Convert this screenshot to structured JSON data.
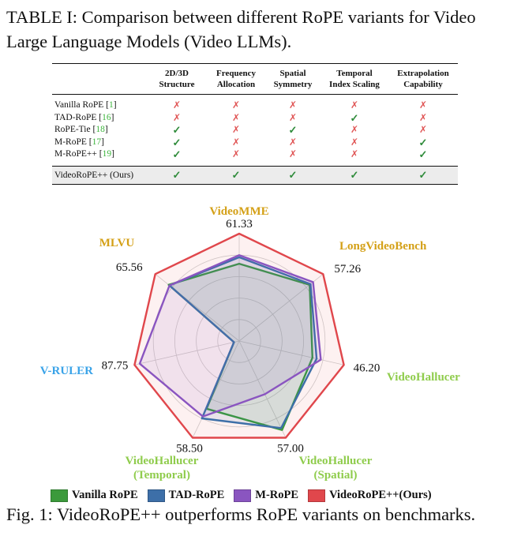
{
  "table": {
    "caption": "TABLE I: Comparison between different RoPE variants for Video Large Language Models (Video LLMs).",
    "headers": [
      [
        "2D/3D",
        "Structure"
      ],
      [
        "Frequency",
        "Allocation"
      ],
      [
        "Spatial",
        "Symmetry"
      ],
      [
        "Temporal",
        "Index Scaling"
      ],
      [
        "Extrapolation",
        "Capability"
      ]
    ],
    "rows": [
      {
        "name": "Vanilla RoPE ",
        "ref": "1",
        "cells": [
          "x",
          "x",
          "x",
          "x",
          "x"
        ]
      },
      {
        "name": "TAD-RoPE ",
        "ref": "16",
        "cells": [
          "x",
          "x",
          "x",
          "check",
          "x"
        ]
      },
      {
        "name": "RoPE-Tie ",
        "ref": "18",
        "cells": [
          "check",
          "x",
          "check",
          "x",
          "x"
        ]
      },
      {
        "name": "M-RoPE ",
        "ref": "17",
        "cells": [
          "check",
          "x",
          "x",
          "x",
          "check"
        ]
      },
      {
        "name": "M-RoPE++ ",
        "ref": "19",
        "cells": [
          "check",
          "x",
          "x",
          "x",
          "check"
        ]
      }
    ],
    "ours": {
      "name": "VideoRoPE++ (Ours)",
      "cells": [
        "check",
        "check",
        "check",
        "check",
        "check"
      ]
    },
    "symbols": {
      "x": "✗",
      "check": "✓"
    }
  },
  "chart_data": {
    "type": "radar",
    "axes": [
      {
        "name": "VideoMME",
        "max_label": "61.33",
        "color": "#d4a017"
      },
      {
        "name": "LongVideoBench",
        "max_label": "57.26",
        "color": "#d4a017"
      },
      {
        "name": "VideoHallucer",
        "max_label": "46.20",
        "color": "#8fcc4c"
      },
      {
        "name": "VideoHallucer\n(Spatial)",
        "max_label": "57.00",
        "color": "#8fcc4c"
      },
      {
        "name": "VideoHallucer\n(Temporal)",
        "max_label": "58.50",
        "color": "#8fcc4c"
      },
      {
        "name": "V-RULER",
        "max_label": "87.75",
        "color": "#3aa3e8"
      },
      {
        "name": "MLVU",
        "max_label": "65.56",
        "color": "#d4a017"
      }
    ],
    "series": [
      {
        "name": "Vanilla RoPE",
        "color": "#3c9a3c",
        "values": [
          0.72,
          0.84,
          0.7,
          0.92,
          0.7,
          0.05,
          0.84
        ]
      },
      {
        "name": "TAD-RoPE",
        "color": "#3d6fa8",
        "values": [
          0.78,
          0.85,
          0.74,
          0.9,
          0.8,
          0.05,
          0.83
        ]
      },
      {
        "name": "M-RoPE",
        "color": "#8a55c0",
        "values": [
          0.8,
          0.88,
          0.78,
          0.55,
          0.78,
          0.95,
          0.83
        ]
      },
      {
        "name": "VideoRoPE++(Ours)",
        "color": "#e0474c",
        "values": [
          1.0,
          1.0,
          1.0,
          1.0,
          1.0,
          1.0,
          1.0
        ]
      }
    ]
  },
  "legend": [
    {
      "label": "Vanilla RoPE",
      "color": "#3c9a3c"
    },
    {
      "label": "TAD-RoPE",
      "color": "#3d6fa8"
    },
    {
      "label": "M-RoPE",
      "color": "#8a55c0"
    },
    {
      "label": "VideoRoPE++(Ours)",
      "color": "#e0474c"
    }
  ],
  "figure_caption": "Fig. 1: VideoRoPE++ outperforms RoPE variants on benchmarks."
}
